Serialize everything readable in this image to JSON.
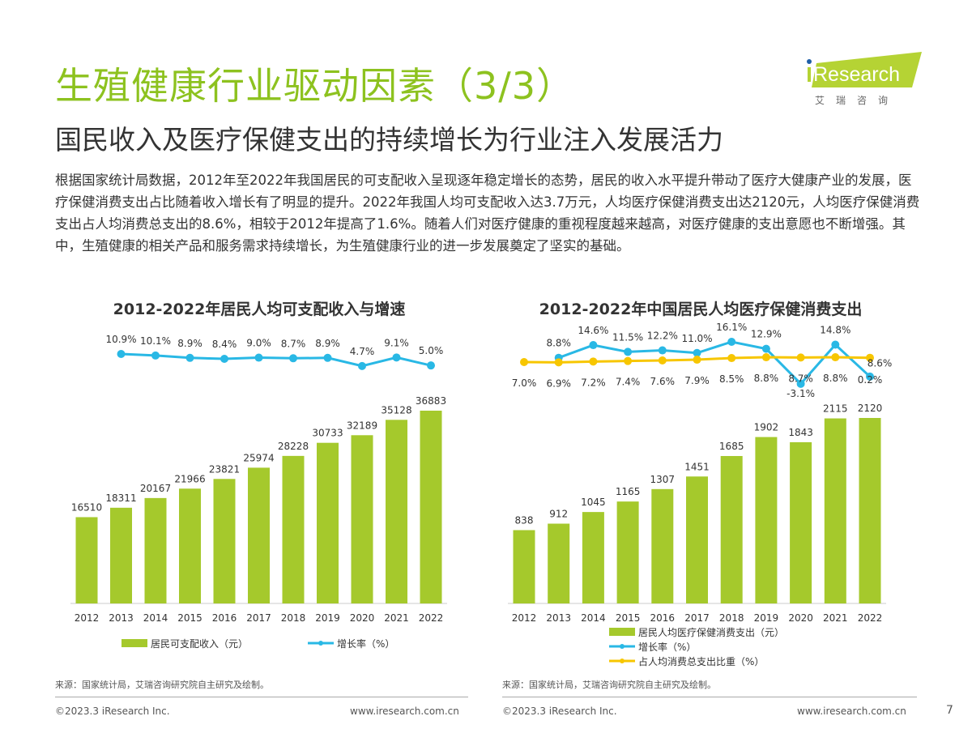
{
  "header": {
    "title": "生殖健康行业驱动因素（3/3）",
    "subtitle": "国民收入及医疗保健支出的持续增长为行业注入发展活力"
  },
  "logo": {
    "brand": "iResearch",
    "cn": "艾 瑞 咨 询",
    "color": "#b5d334"
  },
  "body_text": "根据国家统计局数据，2012年至2022年我国居民的可支配收入呈现逐年稳定增长的态势，居民的收入水平提升带动了医疗大健康产业的发展，医疗保健消费支出占比随着收入增长有了明显的提升。2022年我国人均可支配收入达3.7万元，人均医疗保健消费支出达2120元，人均医疗保健消费支出占人均消费总支出的8.6%，相较于2012年提高了1.6%。随着人们对医疗健康的重视程度越来越高，对医疗健康的支出意愿也不断增强。其中，生殖健康的相关产品和服务需求持续增长，为生殖健康行业的进一步发展奠定了坚实的基础。",
  "chart_data": [
    {
      "type": "bar+line",
      "title": "2012-2022年居民人均可支配收入与增速",
      "categories": [
        "2012",
        "2013",
        "2014",
        "2015",
        "2016",
        "2017",
        "2018",
        "2019",
        "2020",
        "2021",
        "2022"
      ],
      "series": [
        {
          "name": "居民可支配收入（元）",
          "kind": "bar",
          "color": "#a5c92c",
          "values": [
            16510,
            18311,
            20167,
            21966,
            23821,
            25974,
            28228,
            30733,
            32189,
            35128,
            36883
          ]
        },
        {
          "name": "增长率（%）",
          "kind": "line",
          "color": "#29b8e5",
          "values": [
            null,
            10.9,
            10.1,
            8.9,
            8.4,
            9.0,
            8.7,
            8.9,
            4.7,
            9.1,
            5.0
          ]
        }
      ],
      "legend": "bottom"
    },
    {
      "type": "bar+line",
      "title": "2012-2022年中国居民人均医疗保健消费支出",
      "categories": [
        "2012",
        "2013",
        "2014",
        "2015",
        "2016",
        "2017",
        "2018",
        "2019",
        "2020",
        "2021",
        "2022"
      ],
      "series": [
        {
          "name": "居民人均医疗保健消费支出（元）",
          "kind": "bar",
          "color": "#a5c92c",
          "values": [
            838,
            912,
            1045,
            1165,
            1307,
            1451,
            1685,
            1902,
            1843,
            2115,
            2120
          ]
        },
        {
          "name": "增长率（%）",
          "kind": "line",
          "color": "#29b8e5",
          "values": [
            null,
            8.8,
            14.6,
            11.5,
            12.2,
            11.0,
            16.1,
            12.9,
            -3.1,
            14.8,
            0.2
          ]
        },
        {
          "name": "占人均消费总支出比重（%）",
          "kind": "line",
          "color": "#f7c600",
          "values": [
            7.0,
            6.9,
            7.2,
            7.4,
            7.6,
            7.9,
            8.5,
            8.8,
            8.7,
            8.8,
            8.6
          ]
        }
      ],
      "legend": "bottom"
    }
  ],
  "sources": [
    "来源：国家统计局，艾瑞咨询研究院自主研究及绘制。",
    "来源：国家统计局，艾瑞咨询研究院自主研究及绘制。"
  ],
  "footer": {
    "copyright": "©2023.3 iResearch Inc.",
    "url": "www.iresearch.com.cn",
    "page": "7"
  }
}
